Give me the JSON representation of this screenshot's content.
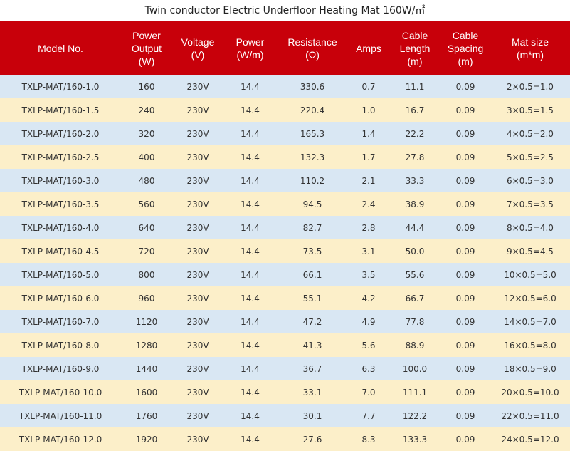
{
  "title": "Twin conductor Electric Underfloor Heating Mat 160W/㎡",
  "colors": {
    "header_bg": "#c8000a",
    "row_odd": "#d9e7f3",
    "row_even": "#fcefc9"
  },
  "headers": [
    [
      "Model No."
    ],
    [
      "Power",
      "Output",
      "(W)"
    ],
    [
      "Voltage",
      "(V)"
    ],
    [
      "Power",
      "(W/m)"
    ],
    [
      "Resistance",
      "(Ω)"
    ],
    [
      "Amps"
    ],
    [
      "Cable",
      "Length",
      "(m)"
    ],
    [
      "Cable",
      "Spacing",
      "(m)"
    ],
    [
      "Mat size",
      "(m*m)"
    ]
  ],
  "rows": [
    [
      "TXLP-MAT/160-1.0",
      "160",
      "230V",
      "14.4",
      "330.6",
      "0.7",
      "11.1",
      "0.09",
      "2×0.5=1.0"
    ],
    [
      "TXLP-MAT/160-1.5",
      "240",
      "230V",
      "14.4",
      "220.4",
      "1.0",
      "16.7",
      "0.09",
      "3×0.5=1.5"
    ],
    [
      "TXLP-MAT/160-2.0",
      "320",
      "230V",
      "14.4",
      "165.3",
      "1.4",
      "22.2",
      "0.09",
      "4×0.5=2.0"
    ],
    [
      "TXLP-MAT/160-2.5",
      "400",
      "230V",
      "14.4",
      "132.3",
      "1.7",
      "27.8",
      "0.09",
      "5×0.5=2.5"
    ],
    [
      "TXLP-MAT/160-3.0",
      "480",
      "230V",
      "14.4",
      "110.2",
      "2.1",
      "33.3",
      "0.09",
      "6×0.5=3.0"
    ],
    [
      "TXLP-MAT/160-3.5",
      "560",
      "230V",
      "14.4",
      "94.5",
      "2.4",
      "38.9",
      "0.09",
      "7×0.5=3.5"
    ],
    [
      "TXLP-MAT/160-4.0",
      "640",
      "230V",
      "14.4",
      "82.7",
      "2.8",
      "44.4",
      "0.09",
      "8×0.5=4.0"
    ],
    [
      "TXLP-MAT/160-4.5",
      "720",
      "230V",
      "14.4",
      "73.5",
      "3.1",
      "50.0",
      "0.09",
      "9×0.5=4.5"
    ],
    [
      "TXLP-MAT/160-5.0",
      "800",
      "230V",
      "14.4",
      "66.1",
      "3.5",
      "55.6",
      "0.09",
      "10×0.5=5.0"
    ],
    [
      "TXLP-MAT/160-6.0",
      "960",
      "230V",
      "14.4",
      "55.1",
      "4.2",
      "66.7",
      "0.09",
      "12×0.5=6.0"
    ],
    [
      "TXLP-MAT/160-7.0",
      "1120",
      "230V",
      "14.4",
      "47.2",
      "4.9",
      "77.8",
      "0.09",
      "14×0.5=7.0"
    ],
    [
      "TXLP-MAT/160-8.0",
      "1280",
      "230V",
      "14.4",
      "41.3",
      "5.6",
      "88.9",
      "0.09",
      "16×0.5=8.0"
    ],
    [
      "TXLP-MAT/160-9.0",
      "1440",
      "230V",
      "14.4",
      "36.7",
      "6.3",
      "100.0",
      "0.09",
      "18×0.5=9.0"
    ],
    [
      "TXLP-MAT/160-10.0",
      "1600",
      "230V",
      "14.4",
      "33.1",
      "7.0",
      "111.1",
      "0.09",
      "20×0.5=10.0"
    ],
    [
      "TXLP-MAT/160-11.0",
      "1760",
      "230V",
      "14.4",
      "30.1",
      "7.7",
      "122.2",
      "0.09",
      "22×0.5=11.0"
    ],
    [
      "TXLP-MAT/160-12.0",
      "1920",
      "230V",
      "14.4",
      "27.6",
      "8.3",
      "133.3",
      "0.09",
      "24×0.5=12.0"
    ]
  ]
}
